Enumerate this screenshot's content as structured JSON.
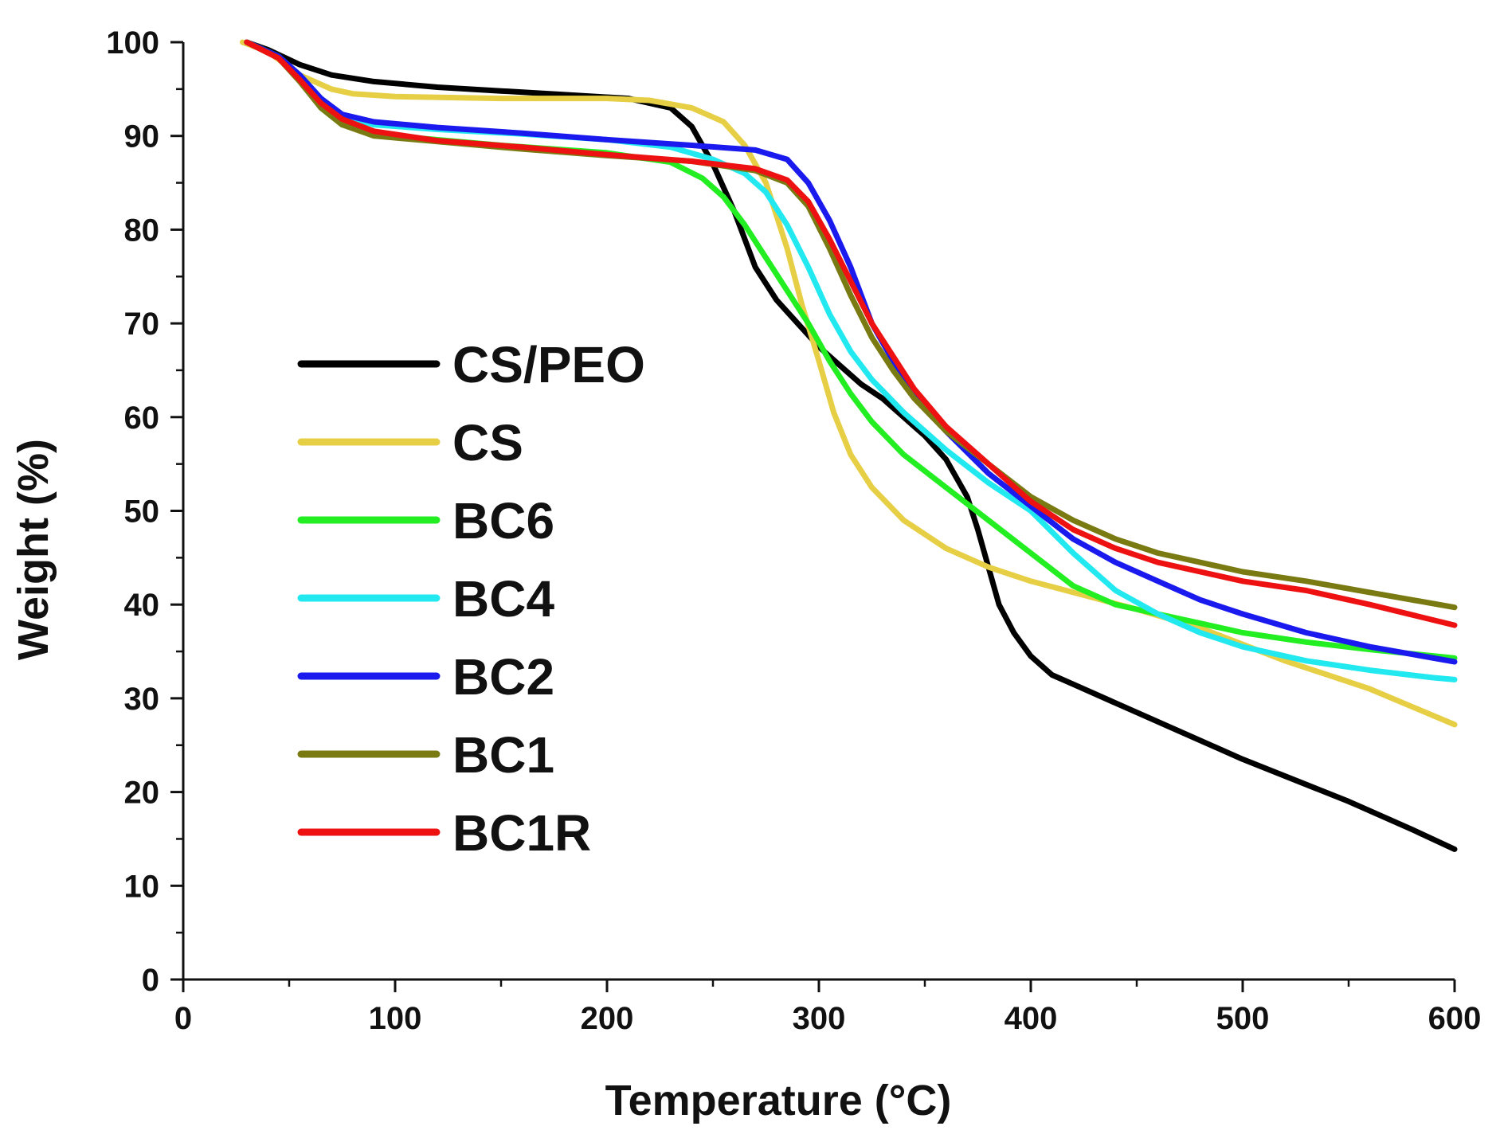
{
  "chart_data": {
    "type": "line",
    "title": "",
    "xlabel": "Temperature (°C)",
    "ylabel": "Weight (%)",
    "xlim": [
      0,
      600
    ],
    "ylim": [
      0,
      100
    ],
    "x_ticks": [
      "0",
      "100",
      "200",
      "300",
      "400",
      "500",
      "600"
    ],
    "y_ticks": [
      "0",
      "10",
      "20",
      "30",
      "40",
      "50",
      "60",
      "70",
      "80",
      "90",
      "100"
    ],
    "grid": false,
    "legend_position": "center-left",
    "series": [
      {
        "name": "CS/PEO",
        "color": "#000000",
        "points": [
          [
            30,
            100
          ],
          [
            40,
            99.2
          ],
          [
            55,
            97.6
          ],
          [
            70,
            96.5
          ],
          [
            90,
            95.8
          ],
          [
            120,
            95.2
          ],
          [
            150,
            94.8
          ],
          [
            180,
            94.4
          ],
          [
            210,
            94
          ],
          [
            230,
            93
          ],
          [
            240,
            91
          ],
          [
            250,
            87
          ],
          [
            260,
            82
          ],
          [
            270,
            76
          ],
          [
            280,
            72.5
          ],
          [
            290,
            70
          ],
          [
            300,
            67.5
          ],
          [
            310,
            65.5
          ],
          [
            320,
            63.5
          ],
          [
            330,
            62
          ],
          [
            340,
            60
          ],
          [
            350,
            58
          ],
          [
            360,
            55.5
          ],
          [
            370,
            51.5
          ],
          [
            375,
            48
          ],
          [
            380,
            44
          ],
          [
            385,
            40
          ],
          [
            392,
            37
          ],
          [
            400,
            34.5
          ],
          [
            410,
            32.5
          ],
          [
            420,
            31.5
          ],
          [
            450,
            28.5
          ],
          [
            500,
            23.5
          ],
          [
            550,
            19
          ],
          [
            580,
            16
          ],
          [
            600,
            13.9
          ]
        ]
      },
      {
        "name": "CS",
        "color": "#e6cf45",
        "points": [
          [
            28,
            100
          ],
          [
            40,
            99
          ],
          [
            55,
            96.5
          ],
          [
            70,
            95
          ],
          [
            80,
            94.5
          ],
          [
            100,
            94.2
          ],
          [
            150,
            94
          ],
          [
            200,
            94
          ],
          [
            220,
            93.8
          ],
          [
            240,
            93
          ],
          [
            255,
            91.5
          ],
          [
            265,
            89
          ],
          [
            275,
            85
          ],
          [
            285,
            78
          ],
          [
            292,
            72
          ],
          [
            300,
            66
          ],
          [
            307,
            60.5
          ],
          [
            315,
            56
          ],
          [
            325,
            52.5
          ],
          [
            340,
            49
          ],
          [
            360,
            46
          ],
          [
            380,
            44
          ],
          [
            400,
            42.5
          ],
          [
            425,
            41
          ],
          [
            450,
            39.5
          ],
          [
            480,
            37.5
          ],
          [
            520,
            34
          ],
          [
            560,
            31
          ],
          [
            600,
            27.2
          ]
        ]
      },
      {
        "name": "BC6",
        "color": "#22ee22",
        "points": [
          [
            30,
            100
          ],
          [
            45,
            98.5
          ],
          [
            55,
            96
          ],
          [
            65,
            93
          ],
          [
            75,
            91.2
          ],
          [
            90,
            90.3
          ],
          [
            110,
            89.8
          ],
          [
            150,
            89
          ],
          [
            200,
            88.2
          ],
          [
            230,
            87.2
          ],
          [
            245,
            85.5
          ],
          [
            255,
            83.5
          ],
          [
            265,
            80.5
          ],
          [
            275,
            77
          ],
          [
            285,
            73.5
          ],
          [
            295,
            70
          ],
          [
            305,
            66
          ],
          [
            315,
            62.5
          ],
          [
            325,
            59.5
          ],
          [
            340,
            56
          ],
          [
            360,
            52.5
          ],
          [
            380,
            49
          ],
          [
            400,
            45.5
          ],
          [
            420,
            42
          ],
          [
            440,
            40
          ],
          [
            460,
            39
          ],
          [
            480,
            38
          ],
          [
            500,
            37
          ],
          [
            530,
            36
          ],
          [
            560,
            35.2
          ],
          [
            600,
            34.3
          ]
        ]
      },
      {
        "name": "BC4",
        "color": "#22e8f0",
        "points": [
          [
            30,
            100
          ],
          [
            45,
            98.5
          ],
          [
            55,
            96.5
          ],
          [
            65,
            94
          ],
          [
            75,
            92.2
          ],
          [
            90,
            91.2
          ],
          [
            120,
            90.7
          ],
          [
            160,
            90.2
          ],
          [
            200,
            89.6
          ],
          [
            230,
            88.8
          ],
          [
            250,
            87.5
          ],
          [
            265,
            86
          ],
          [
            275,
            84
          ],
          [
            285,
            80.5
          ],
          [
            295,
            76
          ],
          [
            305,
            71
          ],
          [
            315,
            67
          ],
          [
            325,
            64
          ],
          [
            340,
            60.5
          ],
          [
            360,
            56.5
          ],
          [
            380,
            53
          ],
          [
            400,
            50
          ],
          [
            420,
            45.5
          ],
          [
            440,
            41.5
          ],
          [
            460,
            39
          ],
          [
            480,
            37
          ],
          [
            500,
            35.5
          ],
          [
            530,
            34
          ],
          [
            560,
            33
          ],
          [
            590,
            32.2
          ],
          [
            600,
            32
          ]
        ]
      },
      {
        "name": "BC2",
        "color": "#1a1aee",
        "points": [
          [
            30,
            100
          ],
          [
            45,
            98.5
          ],
          [
            55,
            96.5
          ],
          [
            65,
            94
          ],
          [
            75,
            92.3
          ],
          [
            90,
            91.5
          ],
          [
            120,
            90.9
          ],
          [
            160,
            90.3
          ],
          [
            200,
            89.6
          ],
          [
            240,
            89
          ],
          [
            270,
            88.5
          ],
          [
            285,
            87.5
          ],
          [
            295,
            85
          ],
          [
            305,
            81
          ],
          [
            315,
            76
          ],
          [
            325,
            70
          ],
          [
            335,
            66
          ],
          [
            345,
            62.5
          ],
          [
            360,
            58.5
          ],
          [
            380,
            54
          ],
          [
            400,
            50.5
          ],
          [
            420,
            47
          ],
          [
            440,
            44.5
          ],
          [
            460,
            42.5
          ],
          [
            480,
            40.5
          ],
          [
            500,
            39
          ],
          [
            530,
            37
          ],
          [
            560,
            35.5
          ],
          [
            600,
            33.9
          ]
        ]
      },
      {
        "name": "BC1",
        "color": "#7a7a12",
        "points": [
          [
            30,
            100
          ],
          [
            45,
            98.3
          ],
          [
            55,
            95.8
          ],
          [
            65,
            93
          ],
          [
            75,
            91.2
          ],
          [
            90,
            90
          ],
          [
            120,
            89.4
          ],
          [
            160,
            88.6
          ],
          [
            200,
            87.9
          ],
          [
            240,
            87.3
          ],
          [
            270,
            86.3
          ],
          [
            285,
            85
          ],
          [
            295,
            82.5
          ],
          [
            305,
            78
          ],
          [
            315,
            73
          ],
          [
            325,
            68.5
          ],
          [
            335,
            65
          ],
          [
            345,
            62
          ],
          [
            360,
            58.5
          ],
          [
            380,
            55
          ],
          [
            400,
            51.5
          ],
          [
            420,
            49
          ],
          [
            440,
            47
          ],
          [
            460,
            45.5
          ],
          [
            480,
            44.5
          ],
          [
            500,
            43.5
          ],
          [
            530,
            42.5
          ],
          [
            560,
            41.3
          ],
          [
            600,
            39.7
          ]
        ]
      },
      {
        "name": "BC1R",
        "color": "#ee1111",
        "points": [
          [
            30,
            100
          ],
          [
            45,
            98.3
          ],
          [
            55,
            96
          ],
          [
            65,
            93.5
          ],
          [
            75,
            91.8
          ],
          [
            90,
            90.5
          ],
          [
            120,
            89.5
          ],
          [
            160,
            88.8
          ],
          [
            200,
            88
          ],
          [
            240,
            87.3
          ],
          [
            270,
            86.5
          ],
          [
            285,
            85.3
          ],
          [
            295,
            83
          ],
          [
            305,
            79
          ],
          [
            315,
            74.5
          ],
          [
            325,
            70
          ],
          [
            335,
            66.5
          ],
          [
            345,
            63
          ],
          [
            360,
            59
          ],
          [
            380,
            55
          ],
          [
            400,
            51
          ],
          [
            420,
            48
          ],
          [
            440,
            46
          ],
          [
            460,
            44.5
          ],
          [
            480,
            43.5
          ],
          [
            500,
            42.5
          ],
          [
            530,
            41.5
          ],
          [
            560,
            40
          ],
          [
            600,
            37.8
          ]
        ]
      }
    ]
  }
}
